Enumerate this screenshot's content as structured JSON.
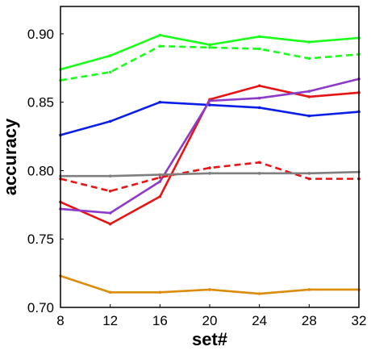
{
  "chart_data": {
    "type": "line",
    "title": "",
    "xlabel": "set#",
    "ylabel": "accuracy",
    "xlim": [
      8,
      32
    ],
    "ylim": [
      0.7,
      0.92
    ],
    "xticks": [
      8,
      12,
      16,
      20,
      24,
      28,
      32
    ],
    "xtick_labels": [
      "8",
      "12",
      "16",
      "20",
      "24",
      "28",
      "32"
    ],
    "yticks": [
      0.7,
      0.75,
      0.8,
      0.85,
      0.9
    ],
    "ytick_labels": [
      "0.70",
      "0.75",
      "0.80",
      "0.85",
      "0.90"
    ],
    "grid": false,
    "legend": "none",
    "x": [
      8,
      12,
      16,
      20,
      24,
      28,
      32
    ],
    "series": [
      {
        "color": "#1aff1a",
        "style": "solid",
        "values": [
          0.874,
          0.884,
          0.899,
          0.892,
          0.898,
          0.894,
          0.897
        ]
      },
      {
        "color": "#1aff1a",
        "style": "dashed",
        "values": [
          0.866,
          0.872,
          0.891,
          0.89,
          0.889,
          0.882,
          0.885
        ]
      },
      {
        "color": "#0a1ee6",
        "style": "solid",
        "values": [
          0.826,
          0.836,
          0.85,
          0.848,
          0.846,
          0.84,
          0.843
        ]
      },
      {
        "color": "#e61414",
        "style": "solid",
        "values": [
          0.777,
          0.761,
          0.781,
          0.852,
          0.862,
          0.854,
          0.857
        ]
      },
      {
        "color": "#8c3cc8",
        "style": "solid",
        "values": [
          0.772,
          0.769,
          0.792,
          0.851,
          0.853,
          0.858,
          0.867
        ]
      },
      {
        "color": "#e61414",
        "style": "dashed",
        "values": [
          0.794,
          0.785,
          0.795,
          0.802,
          0.806,
          0.794,
          0.794
        ]
      },
      {
        "color": "#7f7f7f",
        "style": "solid",
        "values": [
          0.796,
          0.796,
          0.797,
          0.798,
          0.798,
          0.798,
          0.799
        ]
      },
      {
        "color": "#dc8c0a",
        "style": "solid",
        "values": [
          0.723,
          0.711,
          0.711,
          0.713,
          0.71,
          0.713,
          0.713
        ]
      }
    ]
  }
}
